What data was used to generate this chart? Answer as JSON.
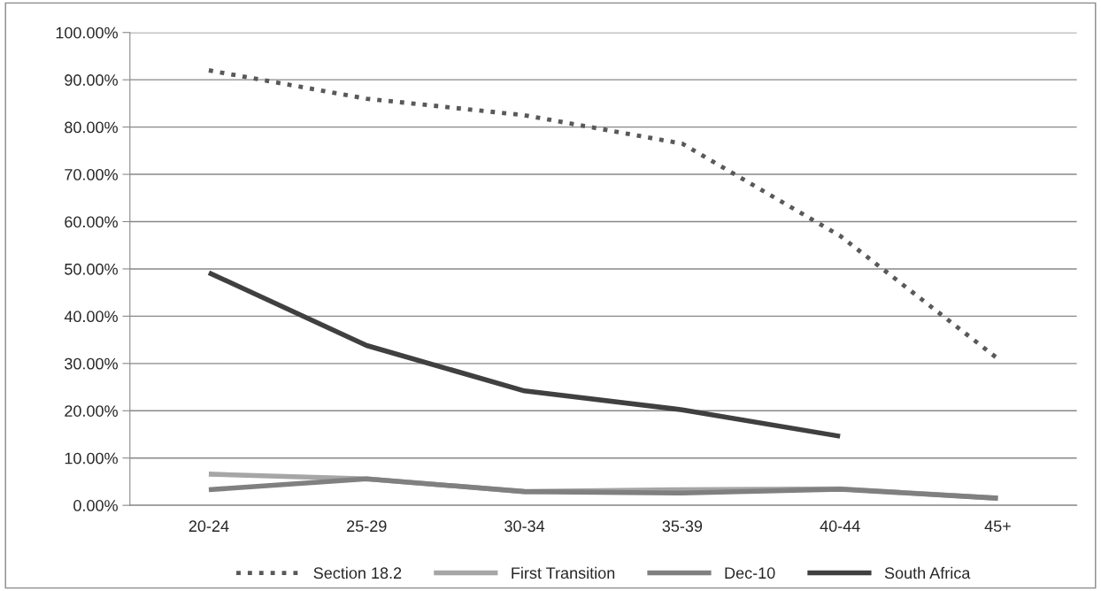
{
  "chart_data": {
    "type": "line",
    "categories": [
      "20-24",
      "25-29",
      "30-34",
      "35-39",
      "40-44",
      "45+"
    ],
    "series": [
      {
        "name": "Section 18.2",
        "color": "#595959",
        "line_style": "dotted",
        "values": [
          92,
          86,
          82.5,
          76.5,
          57,
          31
        ]
      },
      {
        "name": "First Transition",
        "color": "#a6a6a6",
        "line_style": "solid",
        "values": [
          6.6,
          5.6,
          2.9,
          3.3,
          3.5,
          1.5
        ]
      },
      {
        "name": "Dec-10",
        "color": "#808080",
        "line_style": "solid",
        "values": [
          3.3,
          5.6,
          2.9,
          2.6,
          3.4,
          1.5
        ]
      },
      {
        "name": "South Africa",
        "color": "#404040",
        "line_style": "solid",
        "values": [
          49.2,
          33.8,
          24.2,
          20.2,
          14.6,
          null
        ]
      }
    ],
    "ylim": [
      0,
      100
    ],
    "yticks": [
      {
        "value": 0,
        "label": "0.00%"
      },
      {
        "value": 10,
        "label": "10.00%"
      },
      {
        "value": 20,
        "label": "20.00%"
      },
      {
        "value": 30,
        "label": "30.00%"
      },
      {
        "value": 40,
        "label": "40.00%"
      },
      {
        "value": 50,
        "label": "50.00%"
      },
      {
        "value": 60,
        "label": "60.00%"
      },
      {
        "value": 70,
        "label": "70.00%"
      },
      {
        "value": 80,
        "label": "80.00%"
      },
      {
        "value": 90,
        "label": "90.00%"
      },
      {
        "value": 100,
        "label": "100.00%"
      }
    ],
    "grid": "y",
    "legend": "bottom",
    "marker": "none"
  }
}
